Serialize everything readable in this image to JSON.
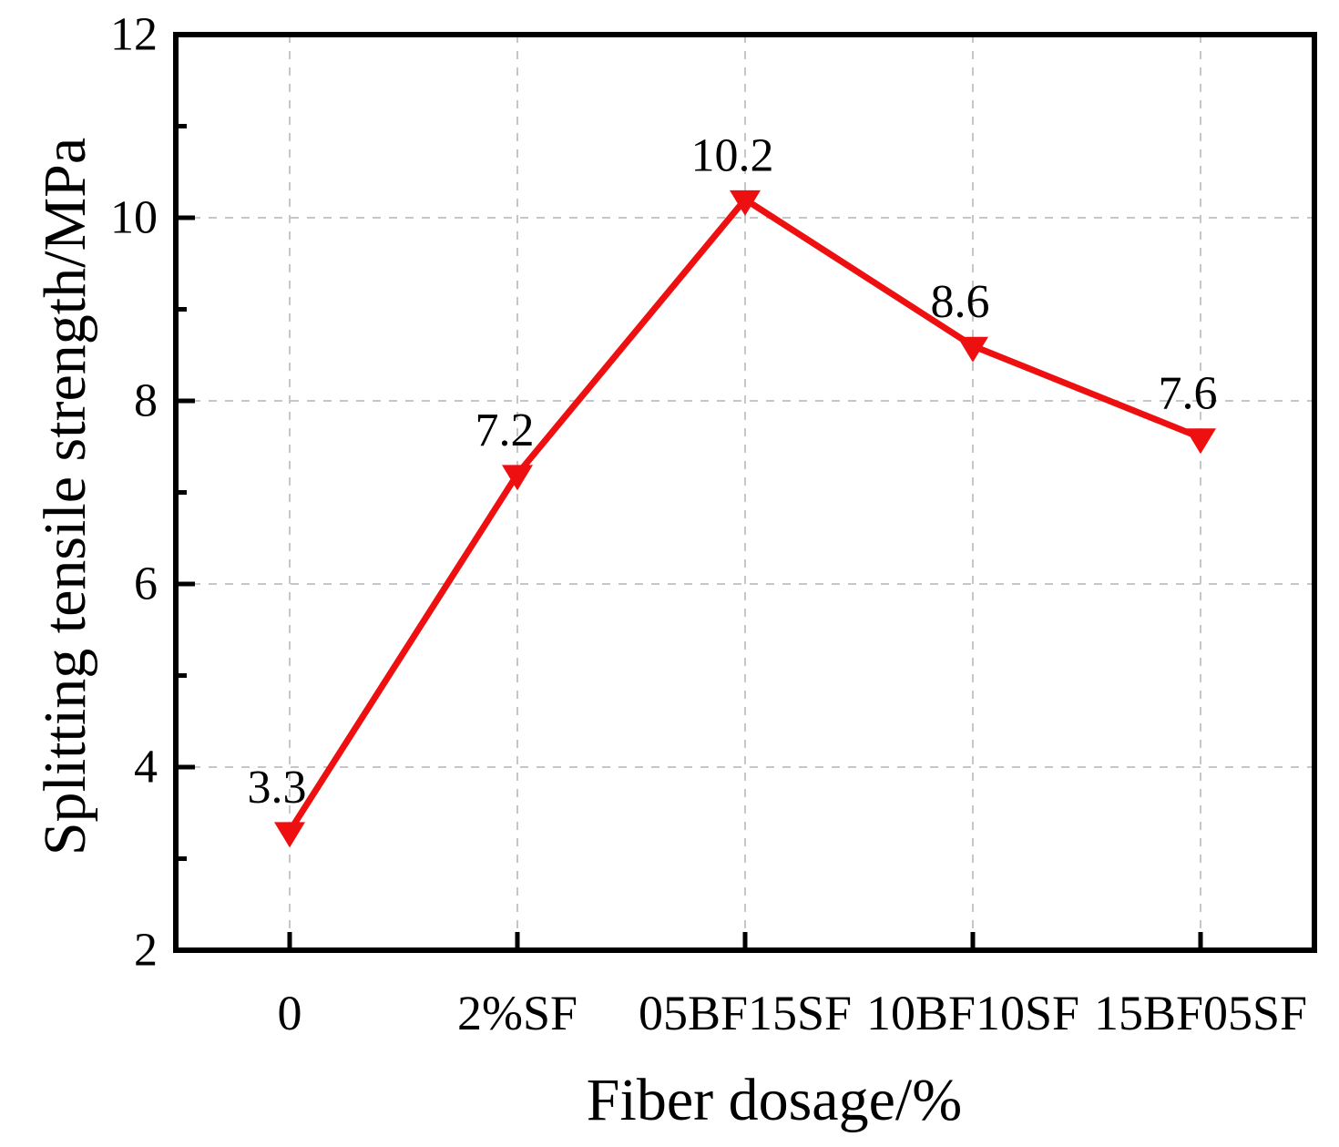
{
  "chart_data": {
    "type": "line",
    "categories": [
      "0",
      "2%SF",
      "05BF15SF",
      "10BF10SF",
      "15BF05SF"
    ],
    "series": [
      {
        "name": "Splitting tensile strength",
        "values": [
          3.3,
          7.2,
          10.2,
          8.6,
          7.6
        ]
      }
    ],
    "point_labels": [
      "3.3",
      "7.2",
      "10.2",
      "8.6",
      "7.6"
    ],
    "xlabel": "Fiber dosage/%",
    "ylabel": "Splitting tensile strength/MPa",
    "ylim": [
      2,
      12
    ],
    "y_major_ticks": [
      2,
      4,
      6,
      8,
      10,
      12
    ],
    "y_minor_ticks": [
      3,
      5,
      7,
      9,
      11
    ],
    "y_tick_labels": [
      "2",
      "4",
      "6",
      "8",
      "10",
      "12"
    ],
    "grid": true,
    "legend": "none",
    "marker": "triangle-down",
    "colors": {
      "line": "#ee1010",
      "marker": "#ee1010",
      "axis": "#000000",
      "grid": "#c6c6c6",
      "text": "#000000",
      "background": "#ffffff"
    }
  }
}
